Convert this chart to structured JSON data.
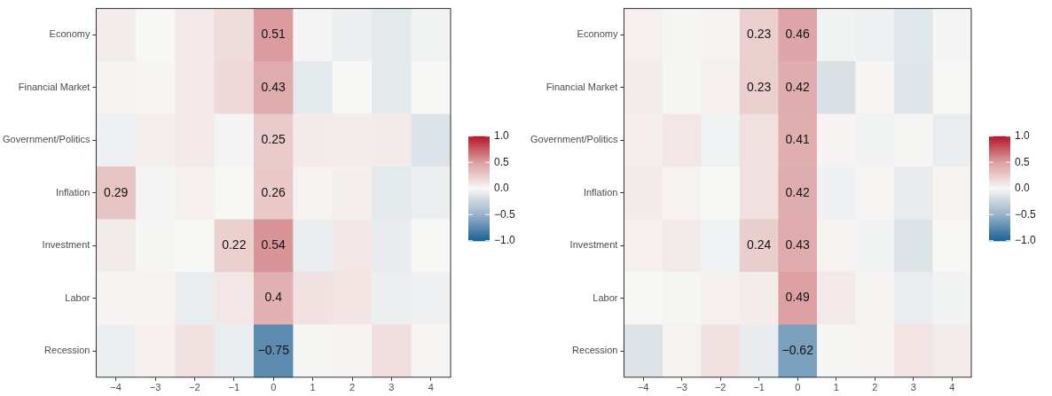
{
  "chart_data": [
    {
      "type": "heatmap",
      "categories": [
        "−4",
        "−3",
        "−2",
        "−1",
        "0",
        "1",
        "2",
        "3",
        "4"
      ],
      "y_categories": [
        "Economy",
        "Financial Market",
        "Government/Politics",
        "Inflation",
        "Investment",
        "Labor",
        "Recession"
      ],
      "cells": [
        [
          0.06,
          0.0,
          0.08,
          0.15,
          0.51,
          -0.02,
          -0.06,
          -0.1,
          -0.03
        ],
        [
          0.03,
          0.01,
          0.08,
          0.17,
          0.43,
          -0.1,
          0.0,
          -0.1,
          0.0
        ],
        [
          -0.05,
          0.05,
          0.08,
          -0.02,
          0.25,
          0.07,
          0.06,
          0.07,
          -0.14
        ],
        [
          0.29,
          -0.02,
          0.04,
          0.0,
          0.26,
          0.03,
          0.05,
          -0.1,
          -0.06
        ],
        [
          0.07,
          -0.01,
          0.0,
          0.22,
          0.54,
          -0.07,
          0.09,
          -0.08,
          0.0
        ],
        [
          0.02,
          0.03,
          -0.07,
          0.09,
          0.4,
          0.12,
          0.1,
          -0.06,
          -0.05
        ],
        [
          -0.06,
          0.04,
          0.12,
          -0.07,
          -0.75,
          -0.01,
          0.02,
          0.14,
          0.01
        ]
      ],
      "cell_labels": [
        [
          null,
          null,
          null,
          null,
          "0.51",
          null,
          null,
          null,
          null
        ],
        [
          null,
          null,
          null,
          null,
          "0.43",
          null,
          null,
          null,
          null
        ],
        [
          null,
          null,
          null,
          null,
          "0.25",
          null,
          null,
          null,
          null
        ],
        [
          "0.29",
          null,
          null,
          null,
          "0.26",
          null,
          null,
          null,
          null
        ],
        [
          null,
          null,
          null,
          "0.22",
          "0.54",
          null,
          null,
          null,
          null
        ],
        [
          null,
          null,
          null,
          null,
          "0.4",
          null,
          null,
          null,
          null
        ],
        [
          null,
          null,
          null,
          null,
          "−0.75",
          null,
          null,
          null,
          null
        ]
      ],
      "clim": [
        -1,
        1
      ],
      "cticks": [
        {
          "value": 1,
          "label": "1.0"
        },
        {
          "value": 0.5,
          "label": "0.5"
        },
        {
          "value": 0,
          "label": "0.0"
        },
        {
          "value": -0.5,
          "label": "−0.5"
        },
        {
          "value": -1,
          "label": "−1.0"
        }
      ]
    },
    {
      "type": "heatmap",
      "categories": [
        "−4",
        "−3",
        "−2",
        "−1",
        "0",
        "1",
        "2",
        "3",
        "4"
      ],
      "y_categories": [
        "Economy",
        "Financial Market",
        "Government/Politics",
        "Inflation",
        "Investment",
        "Labor",
        "Recession"
      ],
      "cells": [
        [
          0.04,
          -0.01,
          0.03,
          0.23,
          0.46,
          -0.03,
          -0.05,
          -0.12,
          -0.02
        ],
        [
          0.06,
          -0.01,
          0.04,
          0.23,
          0.42,
          -0.16,
          0.01,
          -0.13,
          0.0
        ],
        [
          0.05,
          0.09,
          -0.04,
          0.13,
          0.41,
          0.02,
          -0.03,
          -0.01,
          -0.07
        ],
        [
          0.07,
          0.03,
          0.0,
          0.13,
          0.42,
          -0.05,
          0.01,
          -0.08,
          0.03
        ],
        [
          0.04,
          0.07,
          -0.04,
          0.24,
          0.43,
          0.03,
          -0.03,
          -0.14,
          0.0
        ],
        [
          0.0,
          -0.01,
          0.04,
          0.06,
          0.49,
          0.08,
          0.02,
          -0.07,
          -0.03
        ],
        [
          -0.15,
          0.03,
          0.12,
          -0.08,
          -0.62,
          -0.01,
          0.02,
          0.11,
          0.06
        ]
      ],
      "cell_labels": [
        [
          null,
          null,
          null,
          "0.23",
          "0.46",
          null,
          null,
          null,
          null
        ],
        [
          null,
          null,
          null,
          "0.23",
          "0.42",
          null,
          null,
          null,
          null
        ],
        [
          null,
          null,
          null,
          null,
          "0.41",
          null,
          null,
          null,
          null
        ],
        [
          null,
          null,
          null,
          null,
          "0.42",
          null,
          null,
          null,
          null
        ],
        [
          null,
          null,
          null,
          "0.24",
          "0.43",
          null,
          null,
          null,
          null
        ],
        [
          null,
          null,
          null,
          null,
          "0.49",
          null,
          null,
          null,
          null
        ],
        [
          null,
          null,
          null,
          null,
          "−0.62",
          null,
          null,
          null,
          null
        ]
      ],
      "clim": [
        -1,
        1
      ],
      "cticks": [
        {
          "value": 1,
          "label": "1.0"
        },
        {
          "value": 0.5,
          "label": "0.5"
        },
        {
          "value": 0,
          "label": "0.0"
        },
        {
          "value": -0.5,
          "label": "−0.5"
        },
        {
          "value": -1,
          "label": "−1.0"
        }
      ]
    }
  ]
}
